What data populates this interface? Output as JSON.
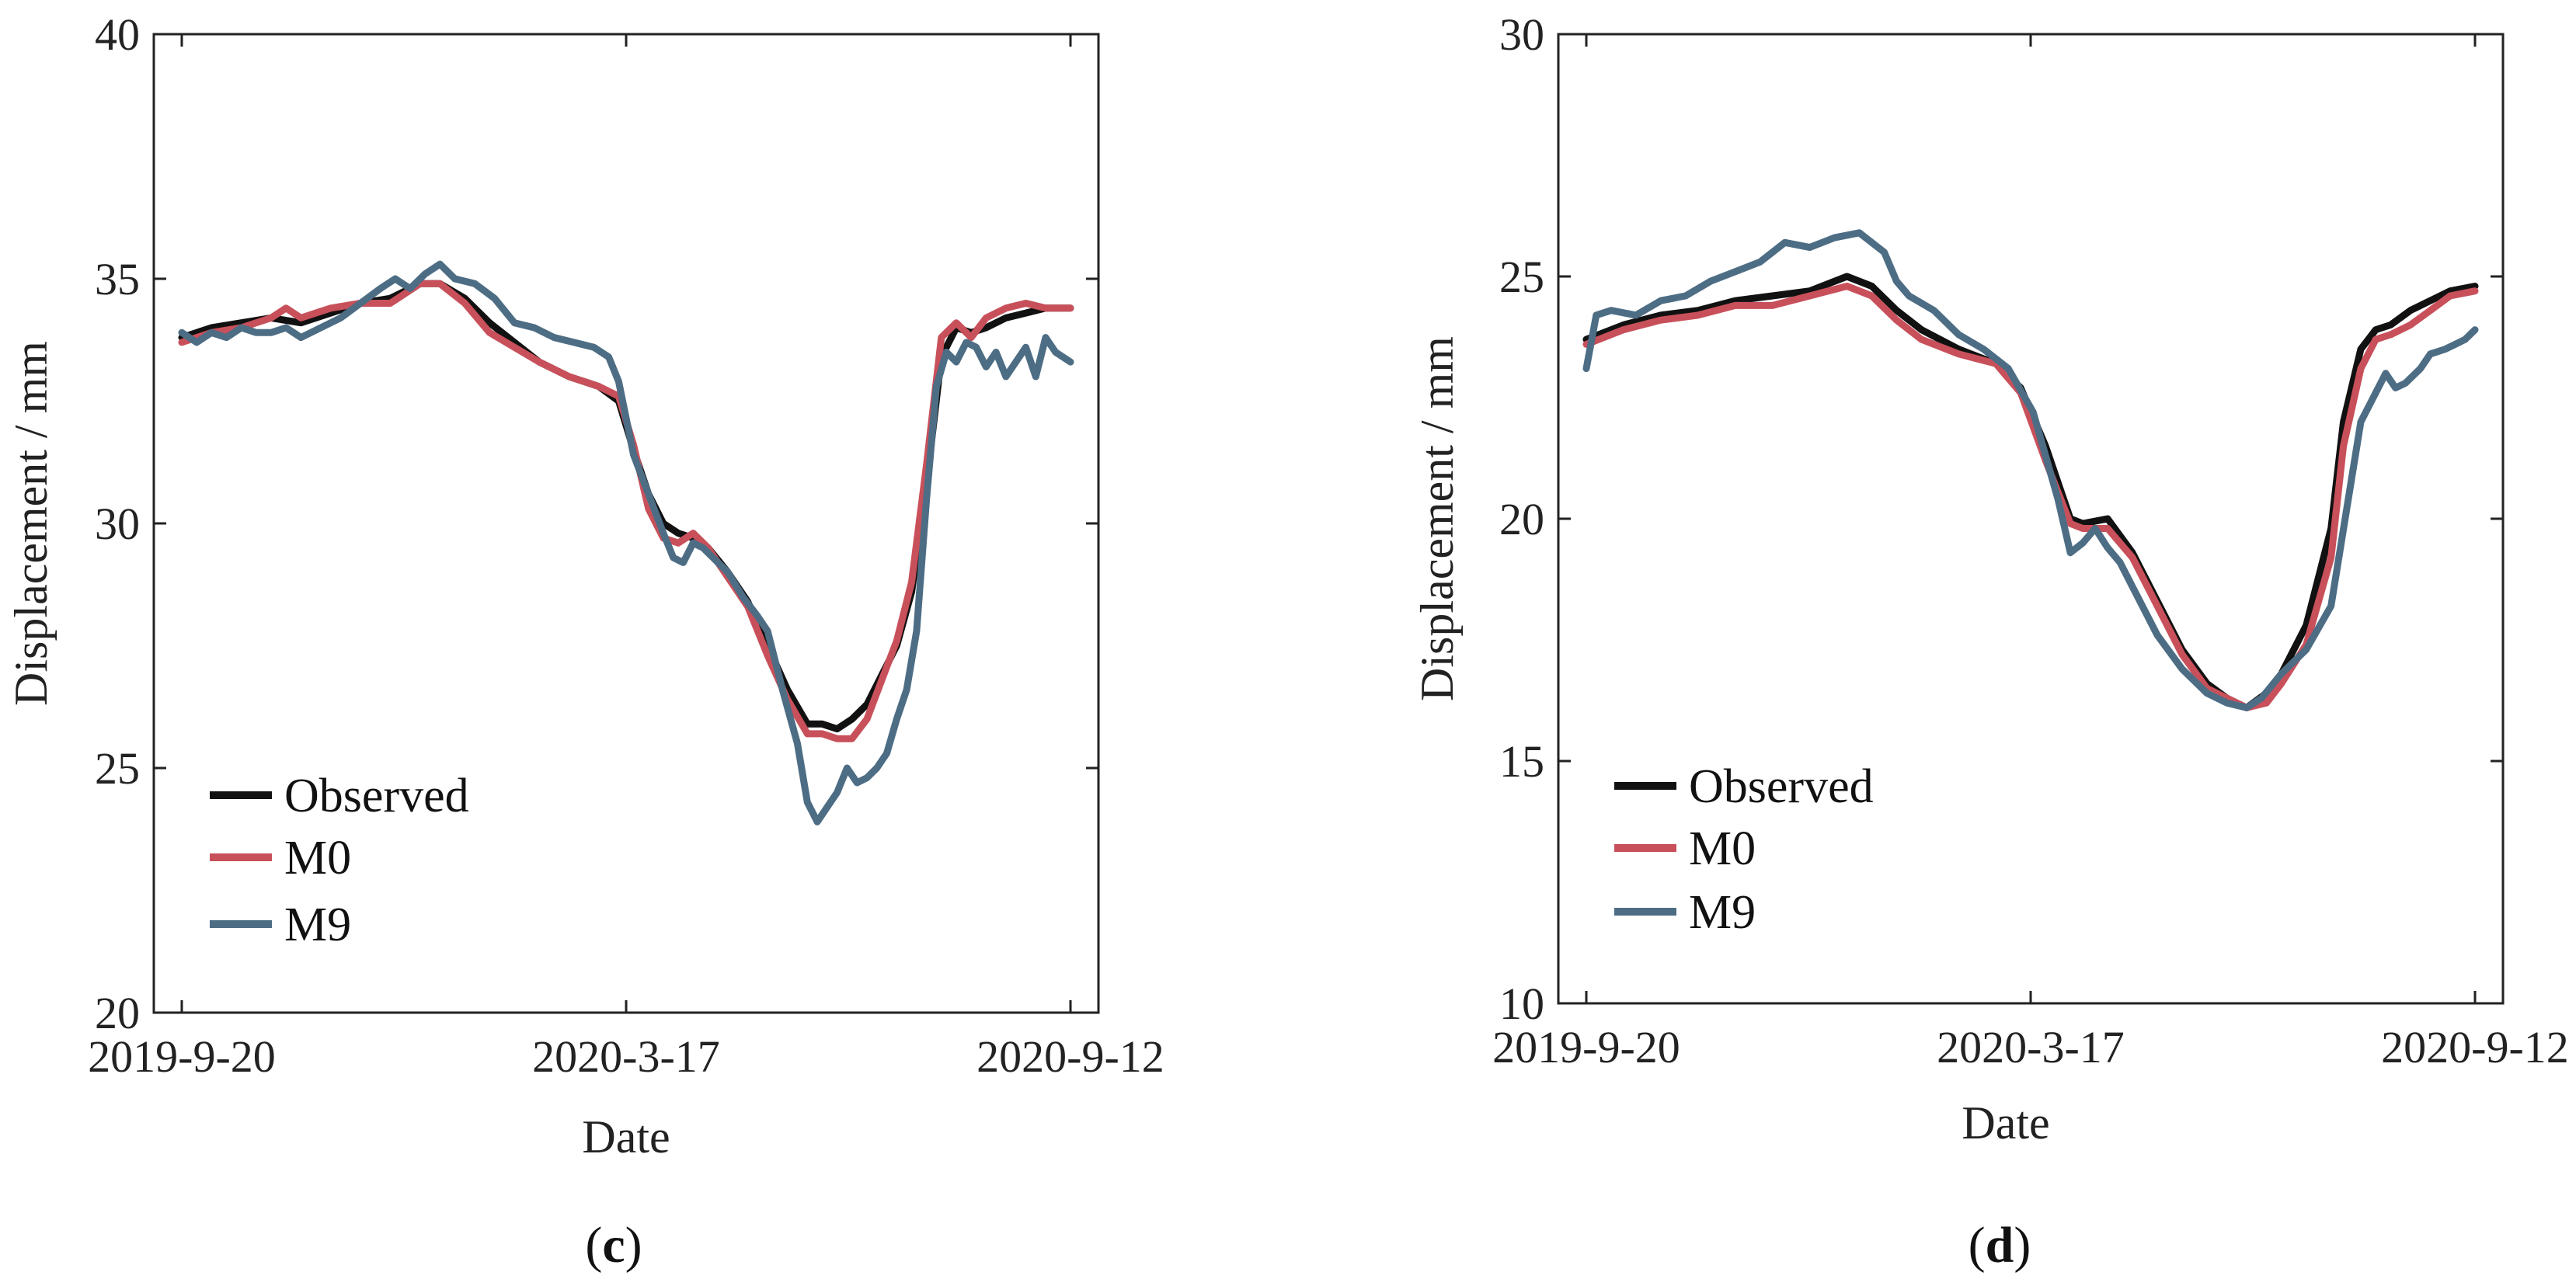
{
  "chart_data": [
    {
      "type": "line",
      "panel": "c",
      "panel_label": "(c)",
      "title": "",
      "xlabel": "Date",
      "ylabel": "Displacement / mm",
      "ylim": [
        20,
        40
      ],
      "yticks": [
        20,
        25,
        30,
        35,
        40
      ],
      "xlim": [
        0,
        358
      ],
      "xtick_positions": [
        0,
        179,
        358
      ],
      "xtick_labels": [
        "2019-9-20",
        "2020-3-17",
        "2020-9-12"
      ],
      "legend_position": "lower-left",
      "series": [
        {
          "name": "Observed",
          "color": "#111111",
          "x": [
            0,
            12,
            24,
            36,
            48,
            60,
            72,
            84,
            96,
            104,
            114,
            124,
            134,
            144,
            156,
            168,
            176,
            182,
            188,
            194,
            200,
            206,
            212,
            220,
            228,
            236,
            244,
            252,
            258,
            264,
            270,
            276,
            282,
            288,
            294,
            300,
            306,
            312,
            318,
            324,
            332,
            340,
            348,
            358
          ],
          "y": [
            33.8,
            34.0,
            34.1,
            34.2,
            34.1,
            34.3,
            34.5,
            34.6,
            34.9,
            34.9,
            34.6,
            34.1,
            33.7,
            33.3,
            33.0,
            32.8,
            32.5,
            31.5,
            30.6,
            30.0,
            29.8,
            29.7,
            29.5,
            29.0,
            28.4,
            27.5,
            26.6,
            25.9,
            25.9,
            25.8,
            26.0,
            26.3,
            26.9,
            27.5,
            28.6,
            30.8,
            33.4,
            34.0,
            33.9,
            34.0,
            34.2,
            34.3,
            34.4,
            34.4
          ]
        },
        {
          "name": "M0",
          "color": "#c8505a",
          "x": [
            0,
            12,
            24,
            36,
            42,
            48,
            60,
            72,
            84,
            96,
            104,
            114,
            124,
            134,
            144,
            156,
            168,
            176,
            182,
            188,
            194,
            200,
            206,
            212,
            220,
            228,
            236,
            244,
            252,
            258,
            264,
            270,
            276,
            282,
            288,
            294,
            300,
            306,
            312,
            318,
            324,
            332,
            340,
            348,
            358
          ],
          "y": [
            33.7,
            33.9,
            34.0,
            34.2,
            34.4,
            34.2,
            34.4,
            34.5,
            34.5,
            34.9,
            34.9,
            34.5,
            33.9,
            33.6,
            33.3,
            33.0,
            32.8,
            32.6,
            31.6,
            30.3,
            29.7,
            29.6,
            29.8,
            29.5,
            28.9,
            28.3,
            27.3,
            26.4,
            25.7,
            25.7,
            25.6,
            25.6,
            26.0,
            26.8,
            27.6,
            28.8,
            31.2,
            33.8,
            34.1,
            33.8,
            34.2,
            34.4,
            34.5,
            34.4,
            34.4
          ]
        },
        {
          "name": "M9",
          "color": "#4d6d85",
          "x": [
            0,
            6,
            12,
            18,
            24,
            30,
            36,
            42,
            48,
            56,
            64,
            72,
            80,
            86,
            92,
            98,
            104,
            110,
            118,
            126,
            134,
            142,
            150,
            158,
            166,
            172,
            176,
            182,
            188,
            194,
            198,
            202,
            206,
            210,
            214,
            220,
            226,
            232,
            236,
            242,
            248,
            252,
            256,
            260,
            264,
            268,
            272,
            276,
            280,
            284,
            288,
            292,
            296,
            300,
            304,
            308,
            312,
            316,
            320,
            324,
            328,
            332,
            336,
            340,
            344,
            348,
            352,
            358
          ],
          "y": [
            33.9,
            33.7,
            33.9,
            33.8,
            34.0,
            33.9,
            33.9,
            34.0,
            33.8,
            34.0,
            34.2,
            34.5,
            34.8,
            35.0,
            34.8,
            35.1,
            35.3,
            35.0,
            34.9,
            34.6,
            34.1,
            34.0,
            33.8,
            33.7,
            33.6,
            33.4,
            32.9,
            31.4,
            30.6,
            29.8,
            29.3,
            29.2,
            29.6,
            29.5,
            29.3,
            29.0,
            28.5,
            28.1,
            27.8,
            26.6,
            25.5,
            24.3,
            23.9,
            24.2,
            24.5,
            25.0,
            24.7,
            24.8,
            25.0,
            25.3,
            26.0,
            26.6,
            27.8,
            30.5,
            32.8,
            33.5,
            33.3,
            33.7,
            33.6,
            33.2,
            33.5,
            33.0,
            33.3,
            33.6,
            33.0,
            33.8,
            33.5,
            33.3
          ]
        }
      ]
    },
    {
      "type": "line",
      "panel": "d",
      "panel_label": "(d)",
      "title": "",
      "xlabel": "Date",
      "ylabel": "Displacement / mm",
      "ylim": [
        10,
        30
      ],
      "yticks": [
        10,
        15,
        20,
        25,
        30
      ],
      "xlim": [
        0,
        358
      ],
      "xtick_positions": [
        0,
        179,
        358
      ],
      "xtick_labels": [
        "2019-9-20",
        "2020-3-17",
        "2020-9-12"
      ],
      "legend_position": "lower-left",
      "series": [
        {
          "name": "Observed",
          "color": "#111111",
          "x": [
            0,
            15,
            30,
            45,
            60,
            75,
            90,
            105,
            115,
            125,
            135,
            150,
            165,
            175,
            185,
            195,
            200,
            210,
            220,
            230,
            240,
            250,
            258,
            266,
            274,
            280,
            290,
            300,
            305,
            312,
            318,
            324,
            332,
            340,
            348,
            358
          ],
          "y": [
            23.7,
            24.0,
            24.2,
            24.3,
            24.5,
            24.6,
            24.7,
            25.0,
            24.8,
            24.3,
            23.9,
            23.5,
            23.2,
            22.7,
            21.5,
            20.0,
            19.9,
            20.0,
            19.3,
            18.3,
            17.3,
            16.6,
            16.3,
            16.1,
            16.4,
            16.8,
            17.8,
            19.8,
            22.0,
            23.5,
            23.9,
            24.0,
            24.3,
            24.5,
            24.7,
            24.8
          ]
        },
        {
          "name": "M0",
          "color": "#c8505a",
          "x": [
            0,
            15,
            30,
            45,
            60,
            75,
            90,
            105,
            115,
            125,
            135,
            150,
            165,
            175,
            185,
            195,
            200,
            210,
            220,
            230,
            240,
            250,
            258,
            266,
            274,
            280,
            290,
            300,
            305,
            312,
            318,
            324,
            332,
            340,
            348,
            358
          ],
          "y": [
            23.6,
            23.9,
            24.1,
            24.2,
            24.4,
            24.4,
            24.6,
            24.8,
            24.6,
            24.1,
            23.7,
            23.4,
            23.2,
            22.6,
            21.2,
            19.9,
            19.8,
            19.8,
            19.2,
            18.2,
            17.2,
            16.5,
            16.3,
            16.1,
            16.2,
            16.6,
            17.4,
            19.2,
            21.5,
            23.1,
            23.7,
            23.8,
            24.0,
            24.3,
            24.6,
            24.7
          ]
        },
        {
          "name": "M9",
          "color": "#4d6d85",
          "x": [
            0,
            4,
            10,
            20,
            30,
            40,
            50,
            60,
            70,
            80,
            90,
            100,
            110,
            120,
            125,
            130,
            140,
            150,
            160,
            170,
            180,
            190,
            195,
            200,
            205,
            210,
            215,
            220,
            230,
            240,
            250,
            258,
            266,
            272,
            280,
            290,
            300,
            306,
            312,
            318,
            322,
            326,
            330,
            336,
            340,
            346,
            350,
            354,
            358
          ],
          "y": [
            23.1,
            24.2,
            24.3,
            24.2,
            24.5,
            24.6,
            24.9,
            25.1,
            25.3,
            25.7,
            25.6,
            25.8,
            25.9,
            25.5,
            24.9,
            24.6,
            24.3,
            23.8,
            23.5,
            23.1,
            22.2,
            20.4,
            19.3,
            19.5,
            19.8,
            19.4,
            19.1,
            18.6,
            17.6,
            16.9,
            16.4,
            16.2,
            16.1,
            16.3,
            16.8,
            17.3,
            18.2,
            20.1,
            22.0,
            22.6,
            23.0,
            22.7,
            22.8,
            23.1,
            23.4,
            23.5,
            23.6,
            23.7,
            23.9
          ]
        }
      ]
    }
  ]
}
